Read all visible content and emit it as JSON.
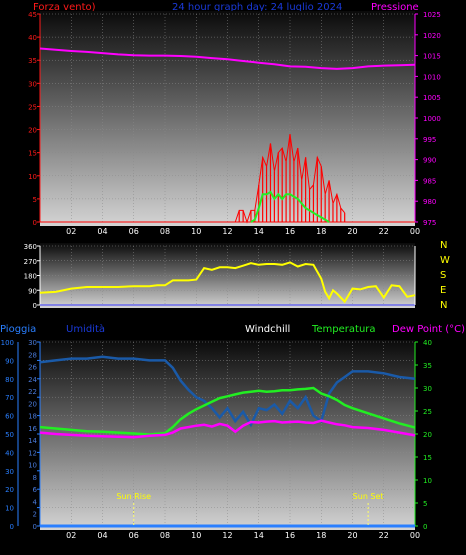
{
  "header": {
    "left_label": "Forza vento)",
    "center_label": "24 hour graph day: 24 luglio 2024",
    "right_label": "Pressione"
  },
  "side_labels": {
    "direction": [
      "N",
      "W",
      "S",
      "E",
      "N"
    ]
  },
  "bottom_header": {
    "labels": [
      "Pioggia",
      "Umidità",
      "Windchill",
      "Temperatura",
      "Dew Point (°C)"
    ]
  },
  "annotations": {
    "sunrise": "Sun Rise",
    "sunset": "Sun Set"
  },
  "colors": {
    "wind": "#ff0000",
    "pressure": "#ff00ff",
    "direction": "#ffff00",
    "humidity": "#1a5aa8",
    "temperature": "#22ee22",
    "dewpoint": "#ff00ff",
    "rain": "#2a7fff",
    "header_blue": "#1a3ad8",
    "windchill": "#ffffff"
  },
  "chart_data": [
    {
      "type": "line",
      "name": "wind-pressure",
      "x_ticks": [
        "02",
        "04",
        "06",
        "08",
        "10",
        "12",
        "14",
        "16",
        "18",
        "20",
        "22",
        "00"
      ],
      "left_axis": {
        "ticks": [
          0,
          5,
          10,
          15,
          20,
          25,
          30,
          35,
          40,
          45
        ],
        "ylim": [
          0,
          45
        ]
      },
      "right_axis": {
        "ticks": [
          975,
          980,
          985,
          990,
          995,
          1000,
          1005,
          1010,
          1015,
          1020,
          1025
        ],
        "ylim": [
          975,
          1025
        ]
      },
      "series": [
        {
          "key": "pressure",
          "axis": "right",
          "x": [
            0,
            1,
            2,
            3,
            4,
            5,
            6,
            7,
            8,
            9,
            10,
            11,
            12,
            13,
            14,
            15,
            16,
            17,
            18,
            19,
            20,
            21,
            22,
            23,
            24
          ],
          "y": [
            1016.7,
            1016.4,
            1016.1,
            1015.9,
            1015.6,
            1015.3,
            1015.1,
            1015.0,
            1015.0,
            1014.9,
            1014.7,
            1014.4,
            1014.1,
            1013.7,
            1013.3,
            1012.9,
            1012.4,
            1012.3,
            1012.0,
            1011.8,
            1012.0,
            1012.4,
            1012.6,
            1012.7,
            1012.8
          ]
        },
        {
          "key": "wind_gust",
          "axis": "left",
          "x": [
            12.5,
            12.75,
            13.0,
            13.25,
            13.5,
            13.75,
            14.0,
            14.25,
            14.5,
            14.75,
            15.0,
            15.25,
            15.5,
            15.75,
            16.0,
            16.25,
            16.5,
            16.75,
            17.0,
            17.25,
            17.5,
            17.75,
            18.0,
            18.25,
            18.5,
            18.75,
            19.0,
            19.25,
            19.5
          ],
          "y": [
            0,
            2.5,
            2.5,
            0,
            2.5,
            2.5,
            8,
            14,
            12,
            17,
            11,
            15,
            16,
            13,
            19,
            13,
            16,
            9,
            14,
            7,
            8,
            14,
            12,
            6,
            9,
            4,
            6,
            3,
            2
          ]
        },
        {
          "key": "wind_avg",
          "axis": "left",
          "x": [
            13.5,
            13.75,
            14.0,
            14.25,
            14.5,
            14.75,
            15.0,
            15.25,
            15.5,
            15.75,
            16.0,
            16.25,
            16.5,
            16.75,
            17.0,
            17.25,
            17.5,
            17.75,
            18.0,
            18.25,
            18.5
          ],
          "y": [
            0,
            0.5,
            3,
            6,
            6,
            6.5,
            5,
            6,
            5,
            6,
            6,
            5.5,
            5,
            4,
            3,
            2.5,
            2,
            1.5,
            1,
            0.5,
            0
          ]
        }
      ]
    },
    {
      "type": "line",
      "name": "wind-direction",
      "left_axis": {
        "ticks": [
          0,
          90,
          180,
          270,
          360
        ],
        "ylim": [
          0,
          360
        ]
      },
      "series": [
        {
          "key": "direction",
          "x": [
            0,
            1,
            2,
            3,
            4,
            5,
            6,
            6.5,
            7,
            7.5,
            8,
            8.5,
            9,
            9.5,
            10,
            10.5,
            11,
            11.5,
            12,
            12.5,
            13,
            13.5,
            14,
            14.5,
            15,
            15.5,
            16,
            16.5,
            17,
            17.5,
            18,
            18.25,
            18.5,
            18.75,
            19,
            19.5,
            20,
            20.5,
            21,
            21.5,
            22,
            22.5,
            23,
            23.5,
            24
          ],
          "y": [
            75,
            80,
            100,
            110,
            110,
            110,
            115,
            115,
            115,
            120,
            120,
            150,
            150,
            150,
            155,
            225,
            215,
            230,
            230,
            225,
            240,
            255,
            245,
            250,
            250,
            245,
            260,
            235,
            250,
            245,
            160,
            80,
            40,
            90,
            70,
            20,
            100,
            95,
            110,
            115,
            45,
            120,
            115,
            50,
            60
          ]
        }
      ]
    },
    {
      "type": "line",
      "name": "humidity-temperature",
      "left_axis": {
        "ticks": [
          0,
          10,
          20,
          30,
          40,
          50,
          60,
          70,
          80,
          90,
          100
        ],
        "ylim": [
          0,
          100
        ]
      },
      "humidity_axis": {
        "ticks": [
          0,
          2,
          4,
          6,
          8,
          10,
          12,
          14,
          16,
          18,
          20,
          22,
          24,
          26,
          28,
          30
        ]
      },
      "right_axis": {
        "ticks": [
          0,
          5,
          10,
          15,
          20,
          25,
          30,
          35,
          40
        ],
        "ylim": [
          0,
          40
        ]
      },
      "series": [
        {
          "key": "humidity",
          "axis": "left",
          "x": [
            0,
            1,
            2,
            3,
            4,
            5,
            6,
            7,
            8,
            8.5,
            9,
            9.5,
            10,
            10.5,
            11,
            11.5,
            12,
            12.5,
            13,
            13.5,
            14,
            14.5,
            15,
            15.5,
            16,
            16.5,
            17,
            17.5,
            18,
            18.5,
            19,
            19.5,
            20,
            21,
            22,
            23,
            24
          ],
          "y": [
            89,
            90,
            91,
            91,
            92,
            91,
            91,
            90,
            90,
            86,
            79,
            74,
            70,
            68,
            64,
            59,
            64,
            57,
            62,
            55,
            64,
            63,
            66,
            61,
            68,
            64,
            70,
            60,
            57,
            72,
            78,
            81,
            84,
            84,
            83,
            81,
            80
          ]
        },
        {
          "key": "temperature",
          "axis": "right",
          "x": [
            0,
            1,
            2,
            3,
            4,
            5,
            6,
            7,
            8,
            8.5,
            9,
            9.5,
            10,
            10.5,
            11,
            11.5,
            12,
            12.5,
            13,
            13.5,
            14,
            14.5,
            15,
            15.5,
            16,
            16.5,
            17,
            17.5,
            18,
            18.5,
            19,
            19.5,
            20,
            21,
            22,
            23,
            24
          ],
          "y": [
            21.5,
            21.2,
            20.9,
            20.6,
            20.5,
            20.3,
            20.1,
            19.9,
            20.2,
            21.5,
            23.2,
            24.4,
            25.4,
            26.2,
            27.0,
            27.8,
            28.2,
            28.6,
            29.0,
            29.2,
            29.4,
            29.2,
            29.3,
            29.5,
            29.5,
            29.7,
            29.8,
            30.0,
            28.8,
            28.2,
            27.4,
            26.3,
            25.6,
            24.5,
            23.4,
            22.3,
            21.4
          ]
        },
        {
          "key": "dewpoint",
          "axis": "right",
          "x": [
            0,
            1,
            2,
            3,
            4,
            5,
            6,
            7,
            8,
            8.5,
            9,
            9.5,
            10,
            10.5,
            11,
            11.5,
            12,
            12.5,
            13,
            13.5,
            14,
            14.5,
            15,
            15.5,
            16,
            16.5,
            17,
            17.5,
            18,
            18.5,
            19,
            19.5,
            20,
            21,
            22,
            23,
            24
          ],
          "y": [
            20.3,
            20.0,
            19.8,
            19.6,
            19.5,
            19.4,
            19.3,
            19.6,
            19.8,
            20.3,
            21.2,
            21.5,
            21.8,
            22.0,
            21.6,
            22.2,
            21.8,
            20.5,
            21.8,
            22.6,
            22.5,
            22.7,
            22.8,
            22.5,
            22.6,
            22.7,
            22.5,
            22.4,
            22.9,
            22.5,
            22.1,
            21.9,
            21.5,
            21.3,
            20.9,
            20.3,
            19.7
          ]
        },
        {
          "key": "rain",
          "axis": "left",
          "x": [
            0,
            24
          ],
          "y": [
            0,
            0
          ]
        }
      ]
    }
  ]
}
